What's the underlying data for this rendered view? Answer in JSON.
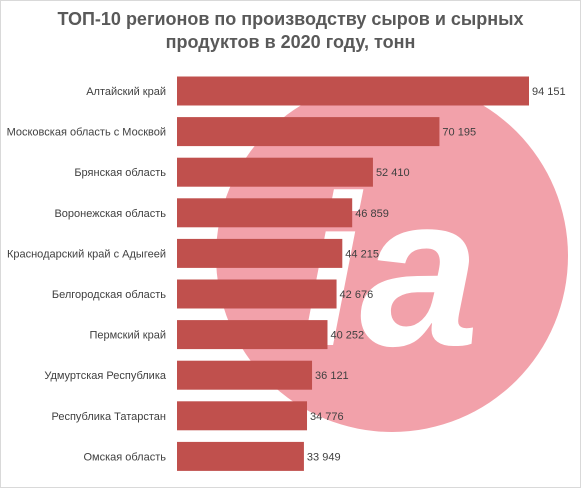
{
  "chart_data": {
    "type": "bar",
    "orientation": "horizontal",
    "title_lines": [
      "ТОП-10 регионов по производству сыров и сырных",
      "продуктов в 2020 году, тонн"
    ],
    "categories": [
      "Алтайский край",
      "Московская область с Москвой",
      "Брянская область",
      "Воронежская область",
      "Краснодарский край с Адыгеей",
      "Белгородская область",
      "Пермский край",
      "Удмуртская Республика",
      "Республика Татарстан",
      "Омская область"
    ],
    "values": [
      94151,
      70195,
      52410,
      46859,
      44215,
      42676,
      40252,
      36121,
      34776,
      33949
    ],
    "value_labels": [
      "94 151",
      "70 195",
      "52 410",
      "46 859",
      "44 215",
      "42 676",
      "40 252",
      "36 121",
      "34 776",
      "33 949"
    ],
    "xlim": [
      0,
      94151
    ],
    "grid": false,
    "legend": "none",
    "bar_color": "#c0504d",
    "watermark_color": "#f2a1aa",
    "watermark_text": "ia"
  }
}
